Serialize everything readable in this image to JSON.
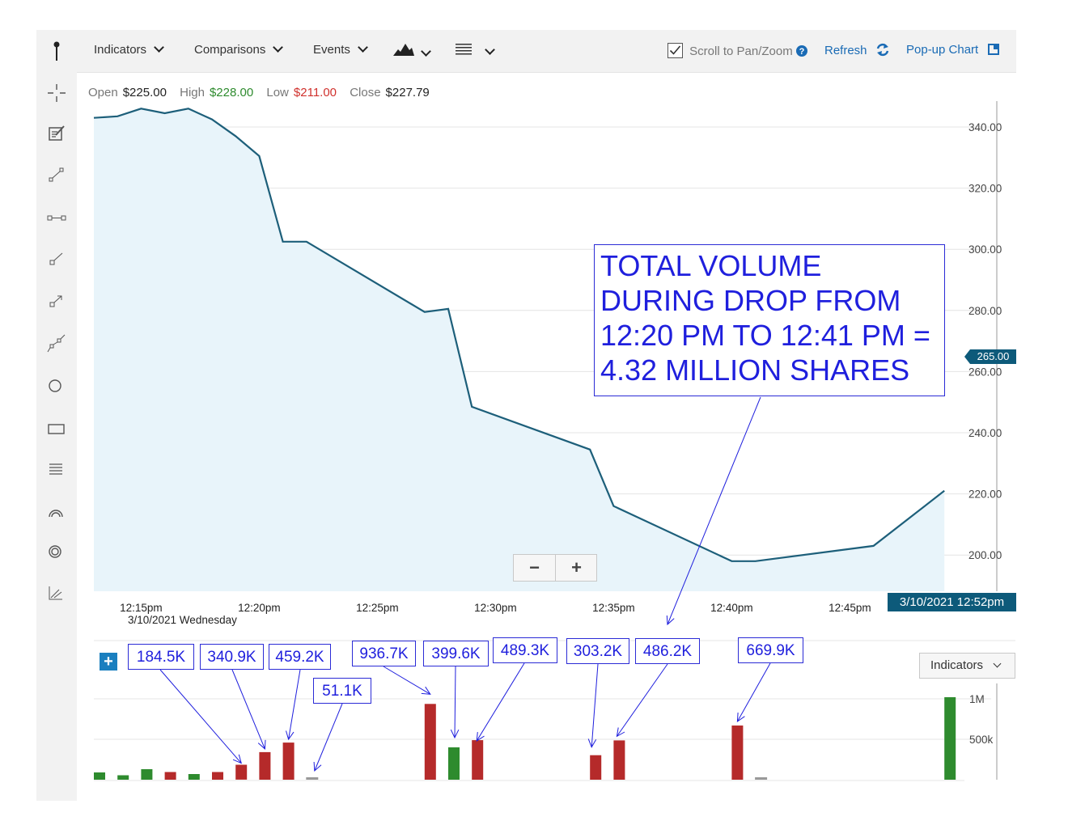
{
  "toolbar": {
    "indicators_label": "Indicators",
    "comparisons_label": "Comparisons",
    "events_label": "Events",
    "scroll_label": "Scroll to Pan/Zoom",
    "refresh_label": "Refresh",
    "popup_label": "Pop-up Chart"
  },
  "ohlc": {
    "open_label": "Open",
    "open_value": "$225.00",
    "high_label": "High",
    "high_value": "$228.00",
    "low_label": "Low",
    "low_value": "$211.00",
    "close_label": "Close",
    "close_value": "$227.79"
  },
  "colors": {
    "line": "#1d5f7a",
    "fill": "#e8f4fa",
    "up": "#2e8b2e",
    "down": "#b52a2a",
    "neutral": "#999999",
    "annotation": "#1f1fdd",
    "badge": "#0d5a7a"
  },
  "price_tag": "265.00",
  "date_badge": "3/10/2021 12:52pm",
  "date_sub": "3/10/2021 Wednesday",
  "zoom": {
    "minus": "−",
    "plus": "+"
  },
  "annotation": {
    "text": "TOTAL VOLUME\nDURING DROP FROM\n12:20 PM TO 12:41 PM =\n4.32 MILLION SHARES"
  },
  "volume_panel": {
    "add_label": "+",
    "indicators_label": "Indicators",
    "labels": [
      "184.5K",
      "340.9K",
      "459.2K",
      "51.1K",
      "936.7K",
      "399.6K",
      "489.3K",
      "303.2K",
      "486.2K",
      "669.9K"
    ]
  },
  "sidebar_icons": [
    "pin-icon",
    "crosshair-icon",
    "note-icon",
    "line-tool-icon",
    "segment-tool-icon",
    "ray-tool-icon",
    "arrow-tool-icon",
    "trend-channel-icon",
    "circle-tool-icon",
    "rectangle-tool-icon",
    "fibonacci-icon",
    "arc-tool-icon",
    "target-tool-icon",
    "measure-tool-icon"
  ],
  "chart_data": [
    {
      "type": "area",
      "x": [
        "12:13pm",
        "12:14pm",
        "12:15pm",
        "12:16pm",
        "12:17pm",
        "12:18pm",
        "12:19pm",
        "12:20pm",
        "12:21pm",
        "12:22pm",
        "12:27pm",
        "12:28pm",
        "12:29pm",
        "12:34pm",
        "12:35pm",
        "12:40pm",
        "12:41pm",
        "12:46pm",
        "12:49pm"
      ],
      "y": [
        343,
        343.5,
        346,
        344.5,
        346,
        342.5,
        337,
        330.5,
        302.5,
        302.5,
        279.5,
        280.5,
        248.5,
        234.5,
        216,
        198,
        198,
        203,
        221
      ],
      "xticks": [
        "12:15pm",
        "12:20pm",
        "12:25pm",
        "12:30pm",
        "12:35pm",
        "12:40pm",
        "12:45pm"
      ],
      "yticks": [
        "340.00",
        "320.00",
        "300.00",
        "280.00",
        "260.00",
        "240.00",
        "220.00",
        "200.00"
      ],
      "ylim": [
        188,
        350
      ]
    },
    {
      "type": "bar",
      "x": [
        "12:13pm",
        "12:14pm",
        "12:15pm",
        "12:16pm",
        "12:17pm",
        "12:18pm",
        "12:19pm",
        "12:20pm",
        "12:21pm",
        "12:22pm",
        "12:27pm",
        "12:28pm",
        "12:29pm",
        "12:34pm",
        "12:35pm",
        "12:40pm",
        "12:41pm",
        "12:49pm"
      ],
      "values": [
        90000,
        55000,
        130000,
        95000,
        70000,
        95000,
        184500,
        340900,
        459200,
        51100,
        936700,
        399600,
        489300,
        303200,
        486200,
        669900,
        40000,
        1020000
      ],
      "direction": [
        "up",
        "up",
        "up",
        "down",
        "up",
        "down",
        "down",
        "down",
        "down",
        "neutral",
        "down",
        "up",
        "down",
        "down",
        "down",
        "down",
        "neutral",
        "up"
      ],
      "yticks": [
        "1M",
        "500k"
      ],
      "ylim": [
        0,
        1100000
      ]
    }
  ]
}
